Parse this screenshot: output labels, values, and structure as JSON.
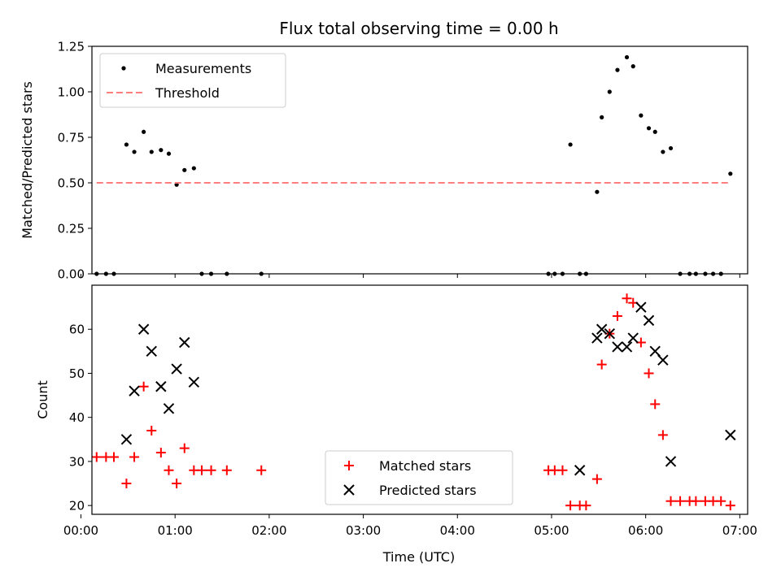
{
  "title": "Flux total observing time = 0.00 h",
  "colors": {
    "measurement": "#000000",
    "threshold": "#ff7f7f",
    "matched": "#ff0000",
    "predicted": "#000000"
  },
  "chart_data": [
    {
      "type": "scatter",
      "ylabel": "Matched/Predicted stars",
      "xlabel": "",
      "ylim": [
        0,
        1.25
      ],
      "yticks": [
        "0.00",
        "0.25",
        "0.50",
        "0.75",
        "1.00",
        "1.25"
      ],
      "xlim": [
        "00:07",
        "07:05"
      ],
      "xticks": [
        "00:00",
        "01:00",
        "02:00",
        "03:00",
        "04:00",
        "05:00",
        "06:00",
        "07:00"
      ],
      "show_xtick_labels": false,
      "legend": {
        "placement": "upper-left",
        "entries": [
          "Measurements",
          "Threshold"
        ]
      },
      "series": [
        {
          "name": "Measurements",
          "marker": "dot",
          "color": "#000000",
          "x": [
            "00:10",
            "00:16",
            "00:21",
            "00:29",
            "00:34",
            "00:40",
            "00:45",
            "00:51",
            "00:56",
            "01:01",
            "01:06",
            "01:12",
            "01:17",
            "01:23",
            "01:33",
            "01:55",
            "04:58",
            "05:02",
            "05:07",
            "05:12",
            "05:18",
            "05:22",
            "05:29",
            "05:32",
            "05:37",
            "05:42",
            "05:48",
            "05:52",
            "05:57",
            "06:02",
            "06:06",
            "06:11",
            "06:16",
            "06:22",
            "06:28",
            "06:32",
            "06:38",
            "06:43",
            "06:48",
            "06:54"
          ],
          "y": [
            0,
            0,
            0,
            0.71,
            0.67,
            0.78,
            0.67,
            0.68,
            0.66,
            0.49,
            0.57,
            0.58,
            0,
            0,
            0,
            0,
            0,
            0,
            0,
            0.71,
            0,
            0,
            0.45,
            0.86,
            1.0,
            1.12,
            1.19,
            1.14,
            0.87,
            0.8,
            0.78,
            0.67,
            0.69,
            0,
            0,
            0,
            0,
            0,
            0,
            0.55
          ]
        },
        {
          "name": "Threshold",
          "style": "dashed",
          "color": "#ff7f7f",
          "x": [
            "00:10",
            "06:54"
          ],
          "y": [
            0.5,
            0.5
          ]
        }
      ]
    },
    {
      "type": "scatter",
      "ylabel": "Count",
      "xlabel": "Time (UTC)",
      "ylim": [
        18,
        70
      ],
      "yticks": [
        "20",
        "30",
        "40",
        "50",
        "60"
      ],
      "xlim": [
        "00:07",
        "07:05"
      ],
      "xticks": [
        "00:00",
        "01:00",
        "02:00",
        "03:00",
        "04:00",
        "05:00",
        "06:00",
        "07:00"
      ],
      "legend": {
        "placement": "lower-center",
        "entries": [
          "Matched stars",
          "Predicted stars"
        ]
      },
      "series": [
        {
          "name": "Matched stars",
          "marker": "plus",
          "color": "#ff0000",
          "x": [
            "00:10",
            "00:16",
            "00:21",
            "00:29",
            "00:34",
            "00:40",
            "00:45",
            "00:51",
            "00:56",
            "01:01",
            "01:06",
            "01:12",
            "01:17",
            "01:23",
            "01:33",
            "01:55",
            "04:58",
            "05:02",
            "05:07",
            "05:12",
            "05:18",
            "05:22",
            "05:29",
            "05:32",
            "05:37",
            "05:42",
            "05:48",
            "05:52",
            "05:57",
            "06:02",
            "06:06",
            "06:11",
            "06:16",
            "06:22",
            "06:28",
            "06:32",
            "06:38",
            "06:43",
            "06:48",
            "06:54"
          ],
          "y": [
            31,
            31,
            31,
            25,
            31,
            47,
            37,
            32,
            28,
            25,
            33,
            28,
            28,
            28,
            28,
            28,
            28,
            28,
            28,
            20,
            20,
            20,
            26,
            52,
            59,
            63,
            67,
            66,
            57,
            50,
            43,
            36,
            21,
            21,
            21,
            21,
            21,
            21,
            21,
            20
          ]
        },
        {
          "name": "Predicted stars",
          "marker": "x",
          "color": "#000000",
          "x": [
            "00:29",
            "00:34",
            "00:40",
            "00:45",
            "00:51",
            "00:56",
            "01:01",
            "01:06",
            "01:12",
            "05:18",
            "05:29",
            "05:32",
            "05:37",
            "05:42",
            "05:48",
            "05:52",
            "05:57",
            "06:02",
            "06:06",
            "06:11",
            "06:16",
            "06:54"
          ],
          "y": [
            35,
            46,
            60,
            55,
            47,
            42,
            51,
            57,
            48,
            28,
            58,
            60,
            59,
            56,
            56,
            58,
            65,
            62,
            55,
            53,
            30,
            36
          ]
        }
      ]
    }
  ]
}
